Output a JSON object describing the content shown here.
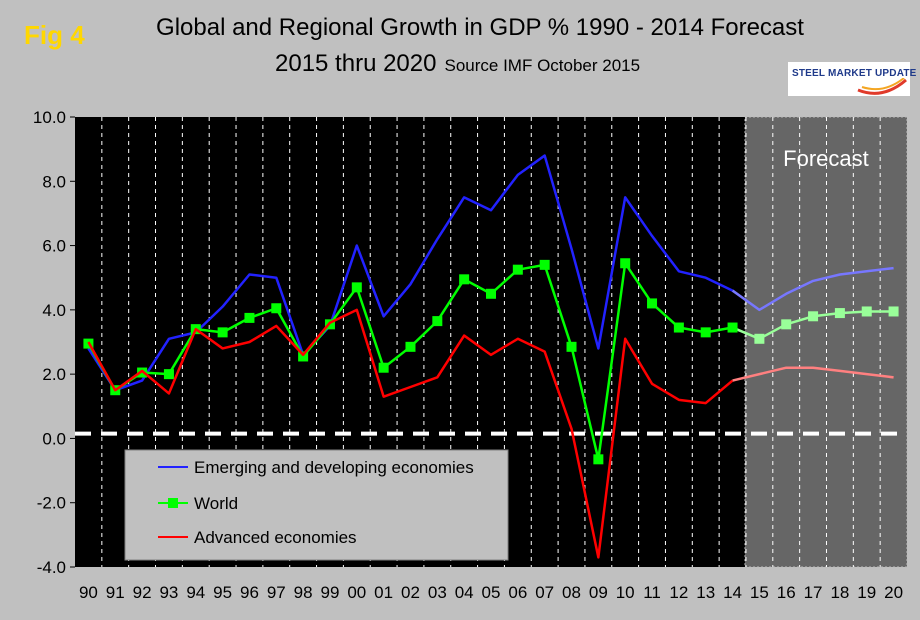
{
  "header": {
    "fig_label": "Fig 4",
    "title_line1": "Global and Regional Growth in GDP % 1990 - 2014 Forecast",
    "title_line2": "2015 thru 2020",
    "source": "Source IMF October 2015",
    "logo_text": "STEEL MARKET UPDATE"
  },
  "colors": {
    "emerging": "#2222ff",
    "emerging_forecast": "#7777ff",
    "world": "#00ff00",
    "world_forecast": "#99ff99",
    "advanced": "#ff0000",
    "advanced_forecast": "#ff8080",
    "plot_bg": "#000000",
    "forecast_bg": "#666666"
  },
  "chart_data": {
    "type": "line",
    "title": "Global and Regional Growth in GDP % 1990 - 2014 Forecast 2015 thru 2020",
    "xlabel": "",
    "ylabel": "",
    "categories": [
      "90",
      "91",
      "92",
      "93",
      "94",
      "95",
      "96",
      "97",
      "98",
      "99",
      "00",
      "01",
      "02",
      "03",
      "04",
      "05",
      "06",
      "07",
      "08",
      "09",
      "10",
      "11",
      "12",
      "13",
      "14",
      "15",
      "16",
      "17",
      "18",
      "19",
      "20"
    ],
    "ylim": [
      -4.0,
      10.0
    ],
    "yticks": [
      "10.0",
      "8.0",
      "6.0",
      "4.0",
      "2.0",
      "0.0",
      "-2.0",
      "-4.0"
    ],
    "forecast_start_index": 25,
    "forecast_label": "Forecast",
    "zero_line": 0.15,
    "series": [
      {
        "name": "Emerging and developing economies",
        "key": "emerging",
        "markers": false,
        "values": [
          2.8,
          1.5,
          1.8,
          3.1,
          3.3,
          4.1,
          5.1,
          5.0,
          2.6,
          3.5,
          6.0,
          3.8,
          4.8,
          6.2,
          7.5,
          7.1,
          8.2,
          8.8,
          5.9,
          2.8,
          7.5,
          6.3,
          5.2,
          5.0,
          4.6,
          4.0,
          4.5,
          4.9,
          5.1,
          5.2,
          5.3
        ]
      },
      {
        "name": "World",
        "key": "world",
        "markers": true,
        "values": [
          2.95,
          1.5,
          2.05,
          2.0,
          3.4,
          3.3,
          3.75,
          4.05,
          2.55,
          3.55,
          4.7,
          2.2,
          2.85,
          3.65,
          4.95,
          4.5,
          5.25,
          5.4,
          2.85,
          -0.65,
          5.45,
          4.2,
          3.45,
          3.3,
          3.45,
          3.1,
          3.55,
          3.8,
          3.9,
          3.95,
          3.95
        ]
      },
      {
        "name": "Advanced economies",
        "key": "advanced",
        "markers": false,
        "values": [
          3.0,
          1.5,
          2.1,
          1.4,
          3.4,
          2.8,
          3.0,
          3.5,
          2.6,
          3.6,
          4.0,
          1.3,
          1.6,
          1.9,
          3.2,
          2.6,
          3.1,
          2.7,
          0.3,
          -3.7,
          3.1,
          1.7,
          1.2,
          1.1,
          1.8,
          2.0,
          2.2,
          2.2,
          2.1,
          2.0,
          1.9
        ]
      }
    ],
    "legend": {
      "position": "bottom-left"
    }
  }
}
